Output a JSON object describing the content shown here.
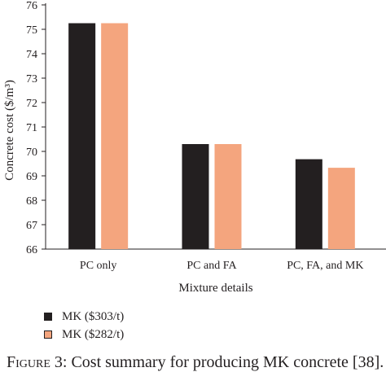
{
  "chart_data": {
    "type": "bar",
    "ylabel": "Concrete cost ($/m³)",
    "xlabel": "Mixture details",
    "categories": [
      "PC only",
      "PC and FA",
      "PC, FA, and MK"
    ],
    "series": [
      {
        "name": "MK ($303/t)",
        "color": "#231f20",
        "values": [
          75.25,
          70.3,
          69.68
        ]
      },
      {
        "name": "MK ($282/t)",
        "color": "#f4a57e",
        "values": [
          75.25,
          70.3,
          69.33
        ]
      }
    ],
    "ylim": [
      66,
      76
    ],
    "yticks": [
      66,
      67,
      68,
      69,
      70,
      71,
      72,
      73,
      74,
      75,
      76
    ],
    "grid": false,
    "legend": "bottom-left"
  },
  "caption": {
    "label": "Figure 3:",
    "text": "Cost summary for producing MK concrete [38]."
  }
}
